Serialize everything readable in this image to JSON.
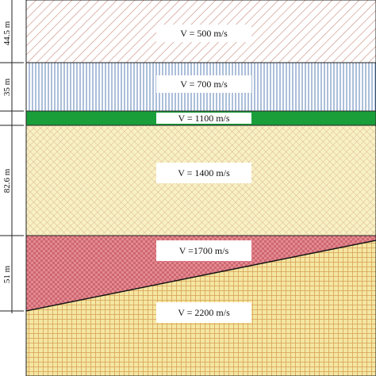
{
  "layers": [
    {
      "id": "layer-1",
      "velocity_label": "V = 500 m/s",
      "thickness_label": "44.5 m"
    },
    {
      "id": "layer-2",
      "velocity_label": "V = 700 m/s",
      "thickness_label": "35 m"
    },
    {
      "id": "layer-3",
      "velocity_label": "V = 1100 m/s",
      "thickness_label": ""
    },
    {
      "id": "layer-4",
      "velocity_label": "V = 1400 m/s",
      "thickness_label": "82.6 m"
    },
    {
      "id": "layer-5",
      "velocity_label": "V =1700 m/s",
      "thickness_label": "51 m"
    },
    {
      "id": "layer-6",
      "velocity_label": "V = 2200 m/s",
      "thickness_label": ""
    }
  ],
  "colors": {
    "layer_1_fill": "#ffffff",
    "layer_1_hatch": "#c98a7a",
    "layer_2_fill": "#ffffff",
    "layer_2_hatch": "#5a7fb5",
    "layer_3_fill": "#1a9e3a",
    "layer_4_fill": "#f7f1c4",
    "layer_4_hatch": "#d9a98a",
    "layer_5_fill": "#e38a92",
    "layer_5_hatch": "#c0505a",
    "layer_6_fill": "#f4e7a2",
    "layer_6_hatch": "#d9a15a",
    "outline": "#222222"
  }
}
